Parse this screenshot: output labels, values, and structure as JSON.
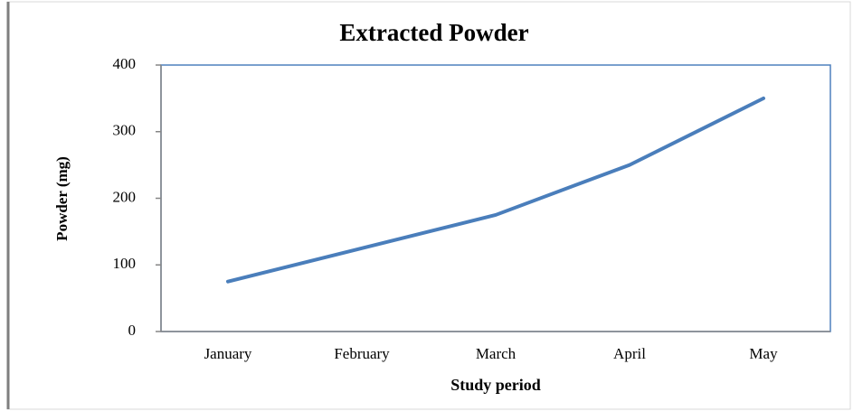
{
  "chart_data": {
    "type": "line",
    "title": "Extracted Powder",
    "x_label": "Study period",
    "y_label": "Powder (mg)",
    "categories": [
      "January",
      "February",
      "March",
      "April",
      "May"
    ],
    "values": [
      75,
      125,
      175,
      250,
      350
    ],
    "color": "#4a7ebb",
    "ylim": [
      0,
      400
    ],
    "yticks": [
      0,
      100,
      200,
      300,
      400
    ],
    "grid": false
  }
}
